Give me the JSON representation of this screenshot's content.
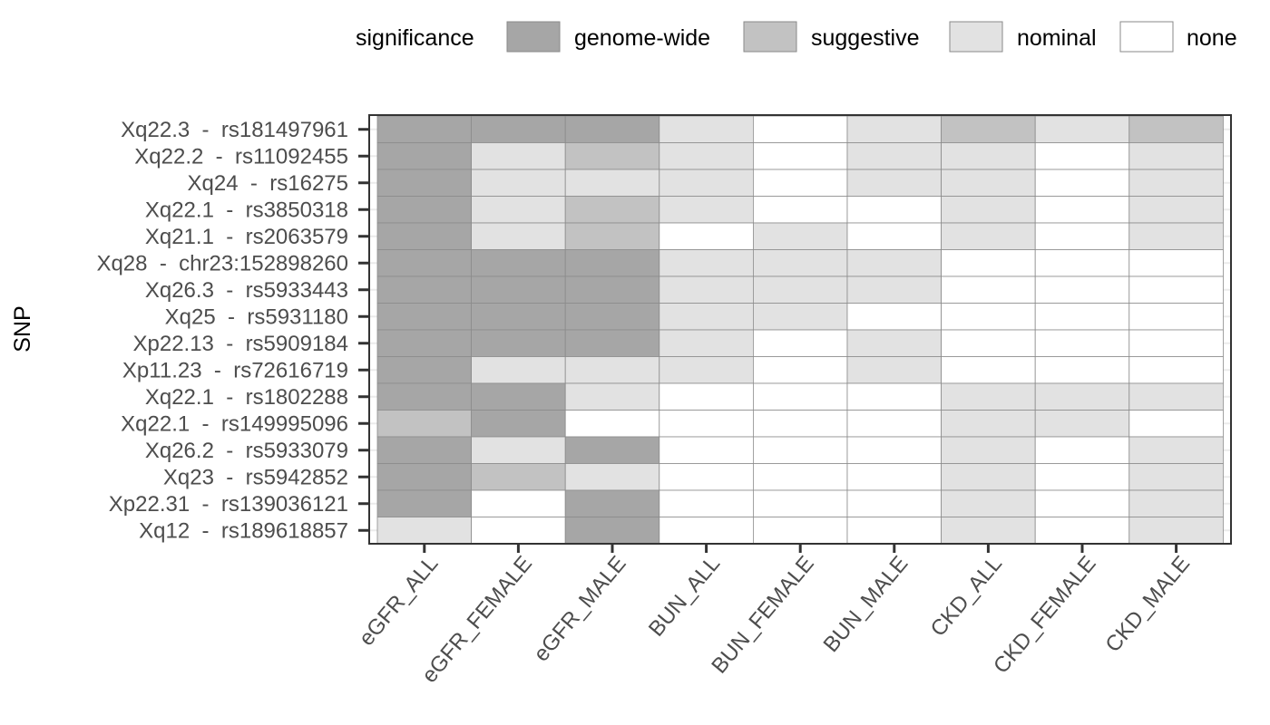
{
  "chart_data": {
    "type": "heatmap",
    "ylabel": "SNP",
    "xlabel": "",
    "columns": [
      "eGFR_ALL",
      "eGFR_FEMALE",
      "eGFR_MALE",
      "BUN_ALL",
      "BUN_FEMALE",
      "BUN_MALE",
      "CKD_ALL",
      "CKD_FEMALE",
      "CKD_MALE"
    ],
    "rows": [
      "Xq22.3  -  rs181497961",
      "Xq22.2  -  rs11092455",
      "Xq24  -  rs16275",
      "Xq22.1  -  rs3850318",
      "Xq21.1  -  rs2063579",
      "Xq28  -  chr23:152898260",
      "Xq26.3  -  rs5933443",
      "Xq25  -  rs5931180",
      "Xp22.13  -  rs5909184",
      "Xp11.23  -  rs72616719",
      "Xq22.1  -  rs1802288",
      "Xq22.1  -  rs149995096",
      "Xq26.2  -  rs5933079",
      "Xq23  -  rs5942852",
      "Xp22.31  -  rs139036121",
      "Xq12  -  rs189618857"
    ],
    "values": [
      [
        "genome-wide",
        "genome-wide",
        "genome-wide",
        "nominal",
        "none",
        "nominal",
        "suggestive",
        "nominal",
        "suggestive"
      ],
      [
        "genome-wide",
        "nominal",
        "suggestive",
        "nominal",
        "none",
        "nominal",
        "nominal",
        "none",
        "nominal"
      ],
      [
        "genome-wide",
        "nominal",
        "nominal",
        "nominal",
        "none",
        "nominal",
        "nominal",
        "none",
        "nominal"
      ],
      [
        "genome-wide",
        "nominal",
        "suggestive",
        "nominal",
        "none",
        "none",
        "nominal",
        "none",
        "nominal"
      ],
      [
        "genome-wide",
        "nominal",
        "suggestive",
        "none",
        "nominal",
        "none",
        "nominal",
        "none",
        "nominal"
      ],
      [
        "genome-wide",
        "genome-wide",
        "genome-wide",
        "nominal",
        "nominal",
        "nominal",
        "none",
        "none",
        "none"
      ],
      [
        "genome-wide",
        "genome-wide",
        "genome-wide",
        "nominal",
        "nominal",
        "nominal",
        "none",
        "none",
        "none"
      ],
      [
        "genome-wide",
        "genome-wide",
        "genome-wide",
        "nominal",
        "nominal",
        "none",
        "none",
        "none",
        "none"
      ],
      [
        "genome-wide",
        "genome-wide",
        "genome-wide",
        "nominal",
        "none",
        "nominal",
        "none",
        "none",
        "none"
      ],
      [
        "genome-wide",
        "nominal",
        "nominal",
        "nominal",
        "none",
        "nominal",
        "none",
        "none",
        "none"
      ],
      [
        "genome-wide",
        "genome-wide",
        "nominal",
        "none",
        "none",
        "none",
        "nominal",
        "nominal",
        "nominal"
      ],
      [
        "suggestive",
        "genome-wide",
        "none",
        "none",
        "none",
        "none",
        "nominal",
        "nominal",
        "none"
      ],
      [
        "genome-wide",
        "nominal",
        "genome-wide",
        "none",
        "none",
        "none",
        "nominal",
        "none",
        "nominal"
      ],
      [
        "genome-wide",
        "suggestive",
        "nominal",
        "none",
        "none",
        "none",
        "nominal",
        "none",
        "nominal"
      ],
      [
        "genome-wide",
        "none",
        "genome-wide",
        "none",
        "none",
        "none",
        "nominal",
        "none",
        "nominal"
      ],
      [
        "nominal",
        "none",
        "genome-wide",
        "none",
        "none",
        "none",
        "nominal",
        "none",
        "nominal"
      ]
    ],
    "legend": {
      "title": "significance",
      "position": "top",
      "levels": [
        "genome-wide",
        "suggestive",
        "nominal",
        "none"
      ],
      "colors": {
        "genome-wide": "#a6a6a6",
        "suggestive": "#c2c2c2",
        "nominal": "#e2e2e2",
        "none": "#ffffff"
      }
    },
    "grid": false
  }
}
